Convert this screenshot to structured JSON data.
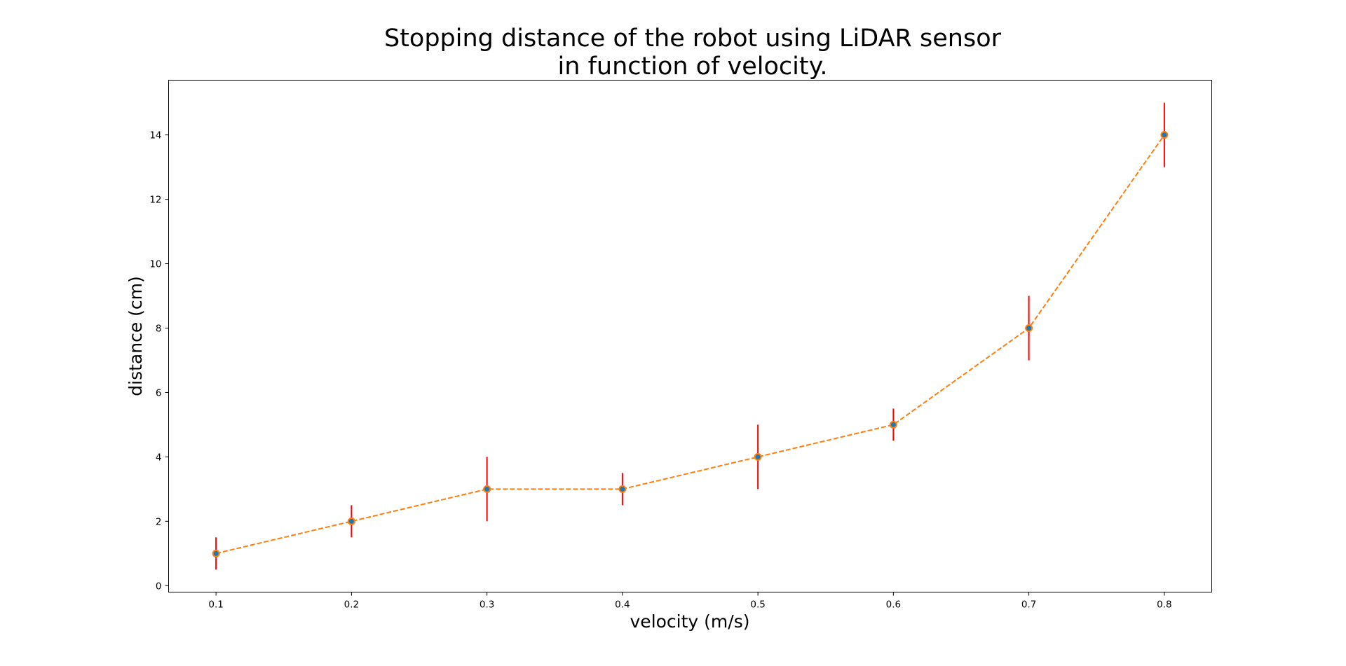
{
  "chart_data": {
    "type": "line",
    "title_lines": [
      "Stopping distance of the robot using LiDAR sensor",
      "in function of velocity."
    ],
    "xlabel": "velocity (m/s)",
    "ylabel": "distance (cm)",
    "x": [
      0.1,
      0.2,
      0.3,
      0.4,
      0.5,
      0.6,
      0.7,
      0.8
    ],
    "y": [
      1,
      2,
      3,
      3,
      4,
      5,
      8,
      14
    ],
    "error": [
      0.5,
      0.5,
      1.0,
      0.5,
      1.0,
      0.5,
      1.0,
      1.0
    ],
    "xlim": [
      0.065,
      0.835
    ],
    "ylim": [
      -0.2,
      15.7
    ],
    "x_ticks": [
      "0.1",
      "0.2",
      "0.3",
      "0.4",
      "0.5",
      "0.6",
      "0.7",
      "0.8"
    ],
    "y_ticks": [
      "0",
      "2",
      "4",
      "6",
      "8",
      "10",
      "12",
      "14"
    ],
    "grid": false,
    "legend": "none",
    "colors": {
      "line": "#ff7f0e",
      "marker": "#1f77b4",
      "errorbar": "#ff0000",
      "axes": "#000000"
    },
    "line_style": "dashed"
  }
}
